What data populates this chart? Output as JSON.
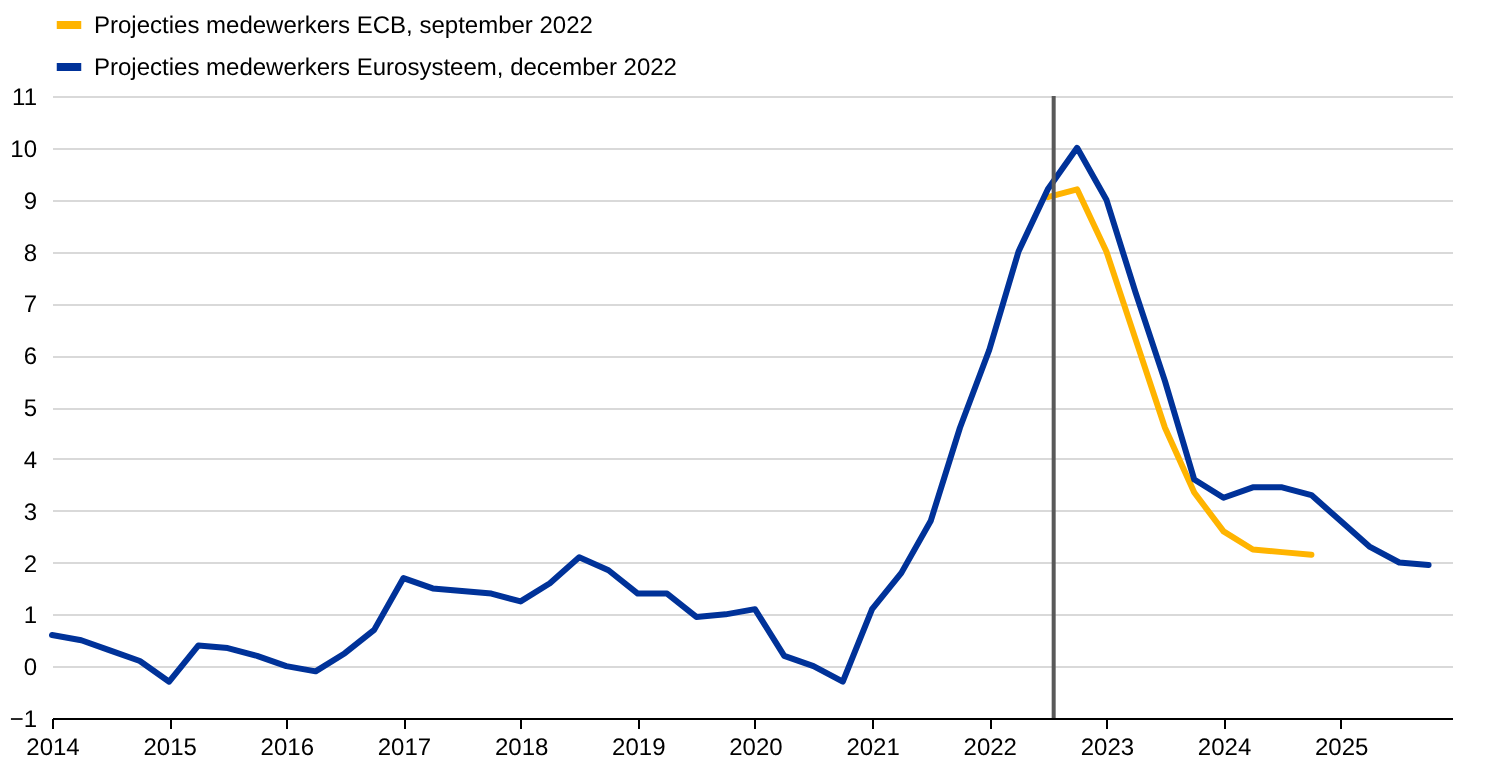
{
  "chart_data": {
    "type": "line",
    "x": [
      2014,
      2014.25,
      2014.5,
      2014.75,
      2015,
      2015.25,
      2015.5,
      2015.75,
      2016,
      2016.25,
      2016.5,
      2016.75,
      2017,
      2017.25,
      2017.5,
      2017.75,
      2018,
      2018.25,
      2018.5,
      2018.75,
      2019,
      2019.25,
      2019.5,
      2019.75,
      2020,
      2020.25,
      2020.5,
      2020.75,
      2021,
      2021.25,
      2021.5,
      2021.75,
      2022,
      2022.25,
      2022.5,
      2022.75,
      2023,
      2023.25,
      2023.5,
      2023.75,
      2024,
      2024.25,
      2024.5,
      2024.75,
      2025,
      2025.25,
      2025.5,
      2025.75
    ],
    "series": [
      {
        "name": "Projecties medewerkers ECB, september 2022",
        "color": "#ffb400",
        "values": [
          null,
          null,
          null,
          null,
          null,
          null,
          null,
          null,
          null,
          null,
          null,
          null,
          null,
          null,
          null,
          null,
          null,
          null,
          null,
          null,
          null,
          null,
          null,
          null,
          null,
          null,
          null,
          null,
          null,
          null,
          null,
          null,
          null,
          null,
          9.05,
          9.2,
          8.0,
          6.3,
          4.6,
          3.35,
          2.6,
          2.25,
          2.2,
          2.15,
          null,
          null,
          null,
          null
        ]
      },
      {
        "name": "Projecties medewerkers Eurosysteem, december 2022",
        "color": "#003299",
        "values": [
          0.6,
          0.5,
          0.3,
          0.1,
          -0.3,
          0.4,
          0.35,
          0.2,
          0.0,
          -0.1,
          0.25,
          0.7,
          1.7,
          1.5,
          1.45,
          1.4,
          1.25,
          1.6,
          2.1,
          1.85,
          1.4,
          1.4,
          0.95,
          1.0,
          1.1,
          0.2,
          0.0,
          -0.3,
          1.1,
          1.8,
          2.8,
          4.6,
          6.1,
          8.0,
          9.2,
          10.0,
          9.0,
          7.2,
          5.5,
          3.6,
          3.25,
          3.45,
          3.45,
          3.3,
          2.8,
          2.3,
          2.0,
          1.95
        ]
      }
    ],
    "xlim": [
      2014,
      2025.95
    ],
    "xticks": [
      2014,
      2015,
      2016,
      2017,
      2018,
      2019,
      2020,
      2021,
      2022,
      2023,
      2024,
      2025
    ],
    "ylim": [
      -1,
      11
    ],
    "yticks": [
      -1,
      0,
      1,
      2,
      3,
      4,
      5,
      6,
      7,
      8,
      9,
      10,
      11
    ],
    "ref_lines": [
      {
        "axis": "x",
        "value": 2022.55,
        "color": "#595959"
      }
    ],
    "grid": "y",
    "legend": "top left",
    "line_style": "solid",
    "marker": "none"
  }
}
